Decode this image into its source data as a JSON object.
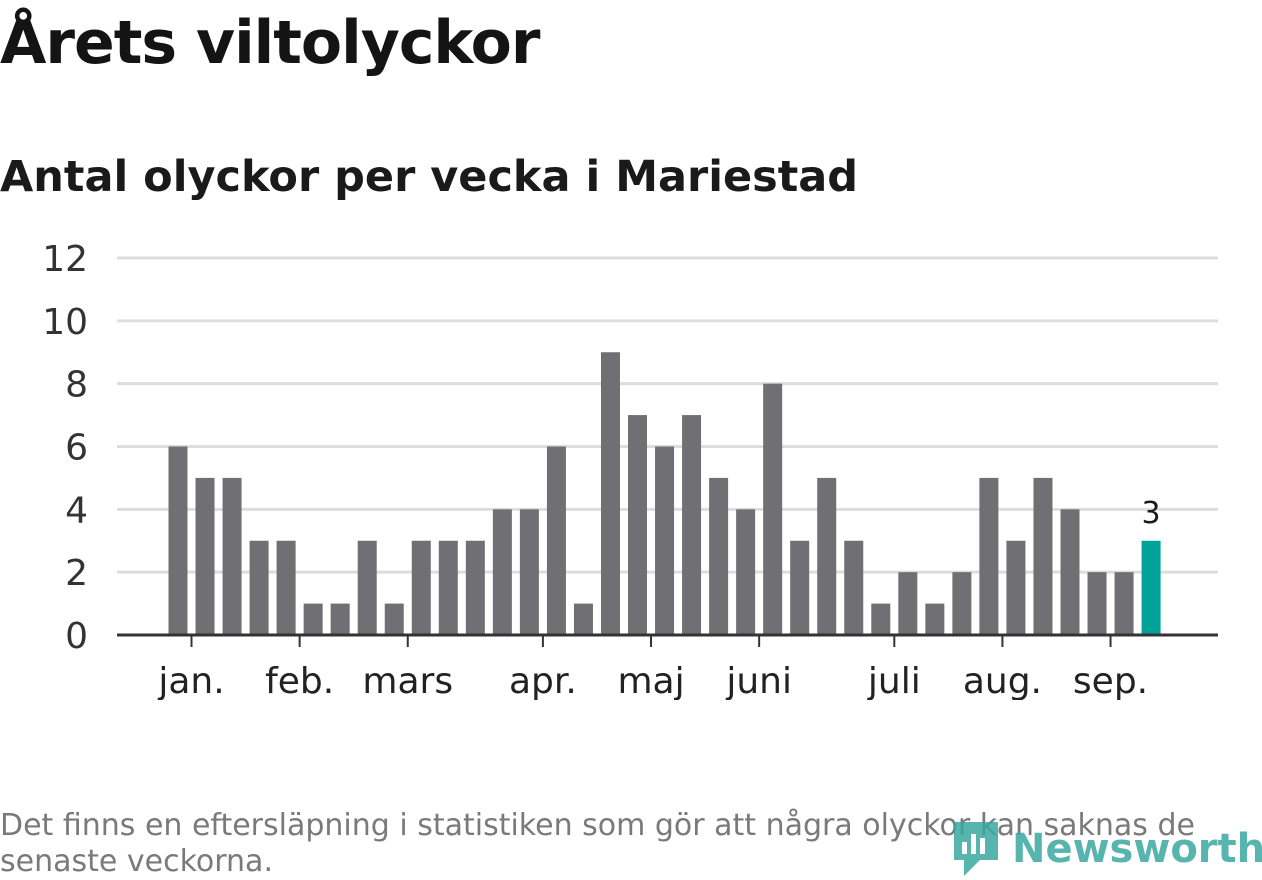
{
  "title": "Årets viltolyckor",
  "subtitle": "Antal olyckor per vecka i Mariestad",
  "footnote": "Det finns en eftersläpning i statistiken som gör att några olyckor kan saknas de senaste veckorna.",
  "logo": {
    "text": "Newsworthy",
    "icon": "newsworthy-logo-icon"
  },
  "colors": {
    "bar": "#6f6f74",
    "highlight": "#00a29a",
    "grid": "#dddddd",
    "axis": "#333333"
  },
  "chart_data": {
    "type": "bar",
    "values": [
      6,
      5,
      5,
      3,
      3,
      1,
      1,
      3,
      1,
      3,
      3,
      3,
      4,
      4,
      6,
      1,
      9,
      7,
      6,
      7,
      5,
      4,
      8,
      3,
      5,
      3,
      1,
      2,
      1,
      2,
      5,
      3,
      5,
      4,
      2,
      2,
      3
    ],
    "highlight_index": 36,
    "highlight_label": "3",
    "ylim": [
      0,
      12
    ],
    "yticks": [
      "0",
      "2",
      "4",
      "6",
      "8",
      "10",
      "12"
    ],
    "month_ticks": [
      {
        "label": "jan.",
        "position": 0.5
      },
      {
        "label": "feb.",
        "position": 4.5
      },
      {
        "label": "mars",
        "position": 8.5
      },
      {
        "label": "apr.",
        "position": 13.5
      },
      {
        "label": "maj",
        "position": 17.5
      },
      {
        "label": "juni",
        "position": 21.5
      },
      {
        "label": "juli",
        "position": 26.5
      },
      {
        "label": "aug.",
        "position": 30.5
      },
      {
        "label": "sep.",
        "position": 34.5
      }
    ],
    "xlabel": "",
    "ylabel": "",
    "grid": true
  }
}
